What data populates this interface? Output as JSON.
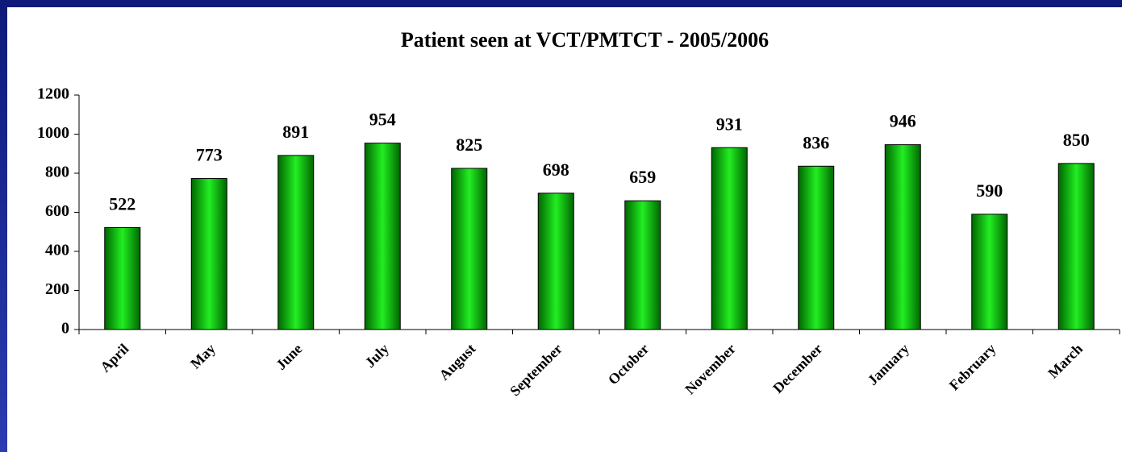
{
  "chart_data": {
    "type": "bar",
    "title": "Patient seen at VCT/PMTCT - 2005/2006",
    "categories": [
      "April",
      "May",
      "June",
      "July",
      "August",
      "September",
      "October",
      "November",
      "December",
      "January",
      "February",
      "March"
    ],
    "values": [
      522,
      773,
      891,
      954,
      825,
      698,
      659,
      931,
      836,
      946,
      590,
      850
    ],
    "color": "#00cc00",
    "ylim": [
      0,
      1200
    ],
    "yticks": [
      0,
      200,
      400,
      600,
      800,
      1000,
      1200
    ],
    "grid": false
  }
}
